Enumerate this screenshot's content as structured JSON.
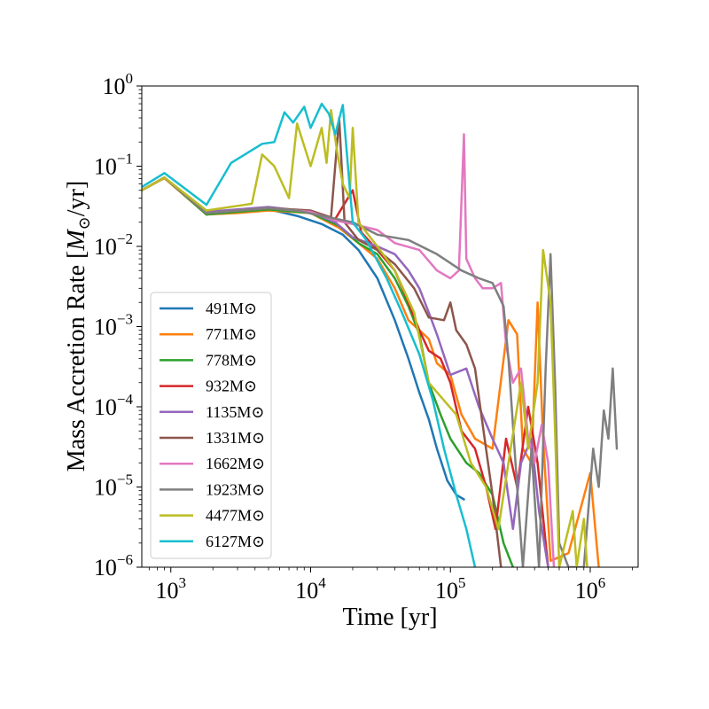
{
  "chart_data": {
    "type": "line",
    "title": "",
    "xlabel": "Time [yr]",
    "ylabel_text": "Mass Accretion Rate [",
    "ylabel_math": "M",
    "ylabel_sub": "⊙",
    "ylabel_tail": "/yr]",
    "xscale": "log",
    "yscale": "log",
    "xlim": [
      620,
      2200000
    ],
    "ylim": [
      1e-06,
      1
    ],
    "legend_position": "lower-left",
    "xticks": [
      {
        "value": 1000,
        "base": "10",
        "exp": "3"
      },
      {
        "value": 10000,
        "base": "10",
        "exp": "4"
      },
      {
        "value": 100000,
        "base": "10",
        "exp": "5"
      },
      {
        "value": 1000000,
        "base": "10",
        "exp": "6"
      }
    ],
    "yticks": [
      {
        "value": 1e-06,
        "base": "10",
        "exp": "−6"
      },
      {
        "value": 1e-05,
        "base": "10",
        "exp": "−5"
      },
      {
        "value": 0.0001,
        "base": "10",
        "exp": "−4"
      },
      {
        "value": 0.001,
        "base": "10",
        "exp": "−3"
      },
      {
        "value": 0.01,
        "base": "10",
        "exp": "−2"
      },
      {
        "value": 0.1,
        "base": "10",
        "exp": "−1"
      },
      {
        "value": 1,
        "base": "10",
        "exp": "0"
      }
    ],
    "series": [
      {
        "name": "491M⊙",
        "color": "#1f77b4",
        "points": [
          [
            620,
            0.05
          ],
          [
            900,
            0.072
          ],
          [
            1800,
            0.025
          ],
          [
            3000,
            0.027
          ],
          [
            5000,
            0.029
          ],
          [
            8000,
            0.024
          ],
          [
            12000,
            0.019
          ],
          [
            17000,
            0.014
          ],
          [
            22000,
            0.009
          ],
          [
            30000,
            0.004
          ],
          [
            40000,
            0.0012
          ],
          [
            50000,
            0.0004
          ],
          [
            60000,
            0.00015
          ],
          [
            70000,
            7e-05
          ],
          [
            80000,
            3e-05
          ],
          [
            95000,
            1.2e-05
          ],
          [
            110000,
            8e-06
          ],
          [
            125000,
            7e-06
          ]
        ]
      },
      {
        "name": "771M⊙",
        "color": "#ff7f0e",
        "points": [
          [
            620,
            0.05
          ],
          [
            900,
            0.071
          ],
          [
            1800,
            0.025
          ],
          [
            3000,
            0.026
          ],
          [
            5000,
            0.028
          ],
          [
            10000,
            0.026
          ],
          [
            16000,
            0.017
          ],
          [
            22000,
            0.011
          ],
          [
            30000,
            0.007
          ],
          [
            40000,
            0.003
          ],
          [
            50000,
            0.0012
          ],
          [
            60000,
            0.0009
          ],
          [
            70000,
            0.0007
          ],
          [
            80000,
            0.00035
          ],
          [
            100000,
            0.00025
          ],
          [
            120000,
            8e-05
          ],
          [
            150000,
            4e-05
          ],
          [
            200000,
            3e-05
          ],
          [
            260000,
            0.0012
          ],
          [
            300000,
            0.0008
          ],
          [
            330000,
            3e-05
          ],
          [
            380000,
            2e-05
          ],
          [
            420000,
            0.002
          ],
          [
            460000,
            4e-05
          ],
          [
            520000,
            1.2e-06
          ],
          [
            700000,
            1.5e-06
          ],
          [
            1000000,
            1.5e-05
          ],
          [
            1150000,
            1e-06
          ]
        ]
      },
      {
        "name": "778M⊙",
        "color": "#2ca02c",
        "points": [
          [
            620,
            0.05
          ],
          [
            900,
            0.072
          ],
          [
            1800,
            0.025
          ],
          [
            3000,
            0.027
          ],
          [
            5000,
            0.029
          ],
          [
            10000,
            0.026
          ],
          [
            16000,
            0.018
          ],
          [
            22000,
            0.011
          ],
          [
            30000,
            0.008
          ],
          [
            40000,
            0.004
          ],
          [
            50000,
            0.0018
          ],
          [
            60000,
            0.0008
          ],
          [
            70000,
            0.0002
          ],
          [
            85000,
            8e-05
          ],
          [
            100000,
            4e-05
          ],
          [
            130000,
            2e-05
          ],
          [
            160000,
            1.5e-05
          ],
          [
            200000,
            8e-06
          ],
          [
            240000,
            2e-06
          ],
          [
            280000,
            1e-06
          ]
        ]
      },
      {
        "name": "932M⊙",
        "color": "#d62728",
        "points": [
          [
            620,
            0.05
          ],
          [
            900,
            0.072
          ],
          [
            1800,
            0.026
          ],
          [
            3000,
            0.028
          ],
          [
            5000,
            0.03
          ],
          [
            10000,
            0.027
          ],
          [
            15000,
            0.022
          ],
          [
            20000,
            0.05
          ],
          [
            23000,
            0.015
          ],
          [
            30000,
            0.009
          ],
          [
            40000,
            0.005
          ],
          [
            50000,
            0.002
          ],
          [
            60000,
            0.0009
          ],
          [
            70000,
            0.0005
          ],
          [
            85000,
            0.0004
          ],
          [
            100000,
            0.0002
          ],
          [
            120000,
            5e-05
          ],
          [
            150000,
            3e-05
          ],
          [
            180000,
            1e-05
          ],
          [
            210000,
            3e-06
          ],
          [
            250000,
            4e-05
          ],
          [
            300000,
            1e-05
          ],
          [
            360000,
            0.0001
          ],
          [
            420000,
            2e-05
          ],
          [
            500000,
            1e-06
          ]
        ]
      },
      {
        "name": "1135M⊙",
        "color": "#9467bd",
        "points": [
          [
            620,
            0.05
          ],
          [
            900,
            0.072
          ],
          [
            1800,
            0.027
          ],
          [
            3000,
            0.029
          ],
          [
            5000,
            0.031
          ],
          [
            10000,
            0.027
          ],
          [
            15000,
            0.02
          ],
          [
            20000,
            0.013
          ],
          [
            30000,
            0.01
          ],
          [
            40000,
            0.008
          ],
          [
            50000,
            0.005
          ],
          [
            60000,
            0.003
          ],
          [
            70000,
            0.0015
          ],
          [
            80000,
            0.0008
          ],
          [
            100000,
            0.00025
          ],
          [
            130000,
            0.0003
          ],
          [
            160000,
            0.0001
          ],
          [
            200000,
            4e-05
          ],
          [
            240000,
            2e-05
          ],
          [
            280000,
            3e-06
          ],
          [
            320000,
            2e-05
          ],
          [
            380000,
            4e-05
          ],
          [
            430000,
            5e-06
          ],
          [
            500000,
            1e-06
          ]
        ]
      },
      {
        "name": "1331M⊙",
        "color": "#8c564b",
        "points": [
          [
            620,
            0.05
          ],
          [
            900,
            0.072
          ],
          [
            1800,
            0.026
          ],
          [
            3000,
            0.028
          ],
          [
            5000,
            0.03
          ],
          [
            10000,
            0.028
          ],
          [
            14000,
            0.023
          ],
          [
            16000,
            0.4
          ],
          [
            17500,
            0.02
          ],
          [
            22000,
            0.012
          ],
          [
            30000,
            0.009
          ],
          [
            40000,
            0.006
          ],
          [
            55000,
            0.003
          ],
          [
            70000,
            0.0013
          ],
          [
            90000,
            0.0012
          ],
          [
            100000,
            0.002
          ],
          [
            110000,
            0.0009
          ],
          [
            130000,
            0.0006
          ],
          [
            150000,
            0.0003
          ],
          [
            170000,
            6e-05
          ],
          [
            200000,
            8e-06
          ],
          [
            230000,
            1e-06
          ]
        ]
      },
      {
        "name": "1662M⊙",
        "color": "#e377c2",
        "points": [
          [
            620,
            0.05
          ],
          [
            900,
            0.072
          ],
          [
            1800,
            0.026
          ],
          [
            3000,
            0.028
          ],
          [
            5000,
            0.03
          ],
          [
            10000,
            0.027
          ],
          [
            15000,
            0.021
          ],
          [
            20000,
            0.019
          ],
          [
            30000,
            0.016
          ],
          [
            40000,
            0.011
          ],
          [
            60000,
            0.009
          ],
          [
            80000,
            0.005
          ],
          [
            100000,
            0.004
          ],
          [
            115000,
            0.005
          ],
          [
            125000,
            0.25
          ],
          [
            130000,
            0.007
          ],
          [
            150000,
            0.004
          ],
          [
            170000,
            0.003
          ],
          [
            200000,
            0.003
          ],
          [
            230000,
            0.0035
          ],
          [
            250000,
            0.0006
          ],
          [
            280000,
            0.0002
          ],
          [
            320000,
            0.0003
          ],
          [
            360000,
            4e-05
          ],
          [
            400000,
            2e-05
          ],
          [
            450000,
            6e-05
          ],
          [
            500000,
            2e-05
          ],
          [
            550000,
            1e-06
          ]
        ]
      },
      {
        "name": "1923M⊙",
        "color": "#7f7f7f",
        "points": [
          [
            620,
            0.05
          ],
          [
            900,
            0.072
          ],
          [
            1800,
            0.026
          ],
          [
            3000,
            0.028
          ],
          [
            5000,
            0.03
          ],
          [
            8000,
            0.028
          ],
          [
            12000,
            0.024
          ],
          [
            20000,
            0.02
          ],
          [
            30000,
            0.014
          ],
          [
            50000,
            0.012
          ],
          [
            80000,
            0.008
          ],
          [
            120000,
            0.005
          ],
          [
            160000,
            0.004
          ],
          [
            200000,
            0.0035
          ],
          [
            240000,
            0.0018
          ],
          [
            260000,
            0.0004
          ],
          [
            300000,
            1e-05
          ],
          [
            330000,
            1e-06
          ],
          [
            380000,
            3e-05
          ],
          [
            430000,
            1e-06
          ],
          [
            480000,
            0.0003
          ],
          [
            520000,
            0.008
          ],
          [
            560000,
            0.0002
          ],
          [
            600000,
            2e-06
          ],
          [
            700000,
            1e-06
          ],
          [
            900000,
            1e-06
          ],
          [
            1050000,
            3e-05
          ],
          [
            1150000,
            1e-05
          ],
          [
            1250000,
            9e-05
          ],
          [
            1350000,
            4e-05
          ],
          [
            1450000,
            0.0003
          ],
          [
            1550000,
            3e-05
          ]
        ]
      },
      {
        "name": "4477M⊙",
        "color": "#bcbd22",
        "points": [
          [
            620,
            0.05
          ],
          [
            900,
            0.072
          ],
          [
            1800,
            0.028
          ],
          [
            3000,
            0.032
          ],
          [
            3800,
            0.034
          ],
          [
            4500,
            0.14
          ],
          [
            5500,
            0.1
          ],
          [
            7000,
            0.04
          ],
          [
            8000,
            0.34
          ],
          [
            10000,
            0.1
          ],
          [
            12000,
            0.3
          ],
          [
            13000,
            0.11
          ],
          [
            14000,
            0.5
          ],
          [
            15500,
            0.15
          ],
          [
            17000,
            0.06
          ],
          [
            19000,
            0.04
          ],
          [
            20000,
            0.3
          ],
          [
            22000,
            0.02
          ],
          [
            30000,
            0.01
          ],
          [
            40000,
            0.005
          ],
          [
            55000,
            0.0015
          ],
          [
            70000,
            0.0002
          ],
          [
            90000,
            0.00012
          ],
          [
            110000,
            8e-05
          ],
          [
            140000,
            2e-05
          ],
          [
            180000,
            1e-05
          ],
          [
            220000,
            3e-06
          ],
          [
            260000,
            2e-05
          ],
          [
            320000,
            0.0002
          ],
          [
            360000,
            3e-05
          ],
          [
            420000,
            0.0002
          ],
          [
            460000,
            0.009
          ],
          [
            520000,
            0.002
          ],
          [
            560000,
            5e-05
          ],
          [
            600000,
            1e-06
          ],
          [
            750000,
            5e-06
          ],
          [
            800000,
            1e-06
          ],
          [
            900000,
            4e-06
          ],
          [
            950000,
            1e-06
          ]
        ]
      },
      {
        "name": "6127M⊙",
        "color": "#17becf",
        "points": [
          [
            620,
            0.055
          ],
          [
            900,
            0.082
          ],
          [
            1800,
            0.033
          ],
          [
            2700,
            0.11
          ],
          [
            4500,
            0.19
          ],
          [
            5500,
            0.2
          ],
          [
            6500,
            0.47
          ],
          [
            7500,
            0.35
          ],
          [
            9000,
            0.55
          ],
          [
            10000,
            0.3
          ],
          [
            12000,
            0.6
          ],
          [
            13500,
            0.45
          ],
          [
            15000,
            0.25
          ],
          [
            17000,
            0.58
          ],
          [
            18500,
            0.1
          ],
          [
            20000,
            0.02
          ],
          [
            25000,
            0.012
          ],
          [
            35000,
            0.004
          ],
          [
            45000,
            0.0015
          ],
          [
            60000,
            0.00045
          ],
          [
            75000,
            0.00012
          ],
          [
            90000,
            3e-05
          ],
          [
            110000,
            8e-06
          ],
          [
            130000,
            3e-06
          ],
          [
            150000,
            1e-06
          ]
        ]
      }
    ]
  }
}
